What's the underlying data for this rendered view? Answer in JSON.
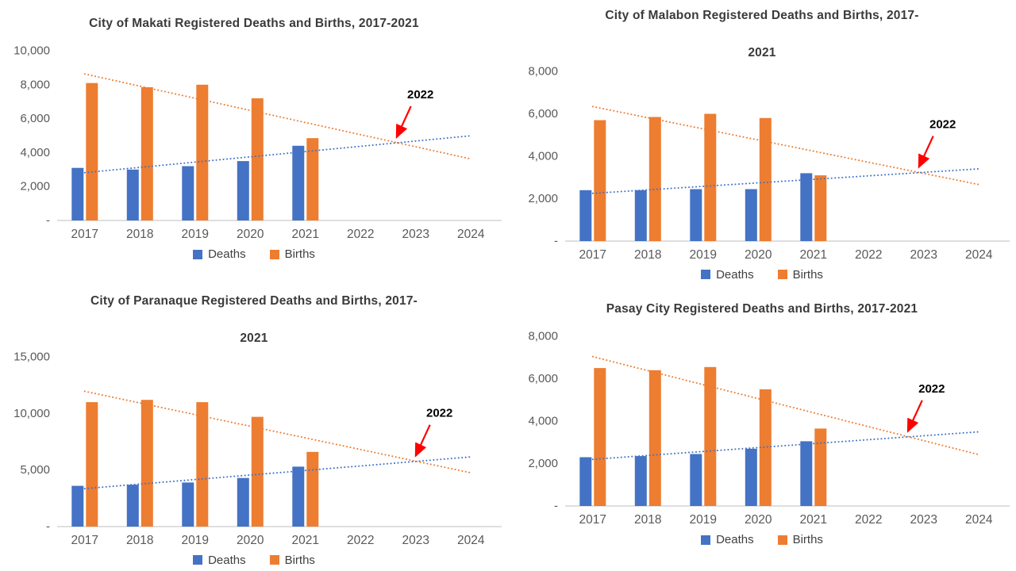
{
  "colors": {
    "deaths": "#4472C4",
    "births": "#ED7D31",
    "annotation": "#FF0000",
    "axis_text": "#595959",
    "title_text": "#3A3A3A",
    "axis_line": "#BFBFBF"
  },
  "chart_data": [
    {
      "type": "bar",
      "title": "City of Makati Registered Deaths and Births, 2017-2021",
      "title_lines": [
        "City of Makati Registered Deaths and Births, 2017-2021"
      ],
      "categories": [
        "2017",
        "2018",
        "2019",
        "2020",
        "2021",
        "2022",
        "2023",
        "2024"
      ],
      "series": [
        {
          "name": "Deaths",
          "values": [
            3100,
            3000,
            3200,
            3500,
            4400
          ]
        },
        {
          "name": "Births",
          "values": [
            8100,
            7850,
            8000,
            7200,
            4850
          ]
        }
      ],
      "ylim": [
        0,
        10000
      ],
      "ytick_step": 2000,
      "zero_tick_label": "-",
      "trendlines": {
        "type": "linear",
        "style": "dotted",
        "forecast_to": "2024"
      },
      "annotation": "2022",
      "legend_position": "bottom",
      "grid": false
    },
    {
      "type": "bar",
      "title": "City of Malabon Registered Deaths and Births, 2017-2021",
      "title_lines": [
        "City of Malabon Registered Deaths and Births, 2017-",
        "2021"
      ],
      "categories": [
        "2017",
        "2018",
        "2019",
        "2020",
        "2021",
        "2022",
        "2023",
        "2024"
      ],
      "series": [
        {
          "name": "Deaths",
          "values": [
            2400,
            2400,
            2450,
            2450,
            3200
          ]
        },
        {
          "name": "Births",
          "values": [
            5700,
            5850,
            6000,
            5800,
            3100
          ]
        }
      ],
      "ylim": [
        0,
        8000
      ],
      "ytick_step": 2000,
      "zero_tick_label": "-",
      "trendlines": {
        "type": "linear",
        "style": "dotted",
        "forecast_to": "2024"
      },
      "annotation": "2022",
      "legend_position": "bottom",
      "grid": false
    },
    {
      "type": "bar",
      "title": "City of Paranaque Registered Deaths and Births, 2017-2021",
      "title_lines": [
        "City of Paranaque Registered Deaths and Births, 2017-",
        "2021"
      ],
      "categories": [
        "2017",
        "2018",
        "2019",
        "2020",
        "2021",
        "2022",
        "2023",
        "2024"
      ],
      "series": [
        {
          "name": "Deaths",
          "values": [
            3600,
            3700,
            3900,
            4300,
            5300
          ]
        },
        {
          "name": "Births",
          "values": [
            11000,
            11200,
            11000,
            9700,
            6600
          ]
        }
      ],
      "ylim": [
        0,
        15000
      ],
      "ytick_step": 5000,
      "zero_tick_label": "-",
      "trendlines": {
        "type": "linear",
        "style": "dotted",
        "forecast_to": "2024"
      },
      "annotation": "2022",
      "legend_position": "bottom",
      "grid": false
    },
    {
      "type": "bar",
      "title": "Pasay City Registered Deaths and Births, 2017-2021",
      "title_lines": [
        "Pasay City Registered Deaths and Births, 2017-2021"
      ],
      "categories": [
        "2017",
        "2018",
        "2019",
        "2020",
        "2021",
        "2022",
        "2023",
        "2024"
      ],
      "series": [
        {
          "name": "Deaths",
          "values": [
            2300,
            2350,
            2450,
            2700,
            3050
          ]
        },
        {
          "name": "Births",
          "values": [
            6500,
            6400,
            6550,
            5500,
            3650
          ]
        }
      ],
      "ylim": [
        0,
        8000
      ],
      "ytick_step": 2000,
      "zero_tick_label": "-",
      "trendlines": {
        "type": "linear",
        "style": "dotted",
        "forecast_to": "2024"
      },
      "annotation": "2022",
      "legend_position": "bottom",
      "grid": false
    }
  ]
}
